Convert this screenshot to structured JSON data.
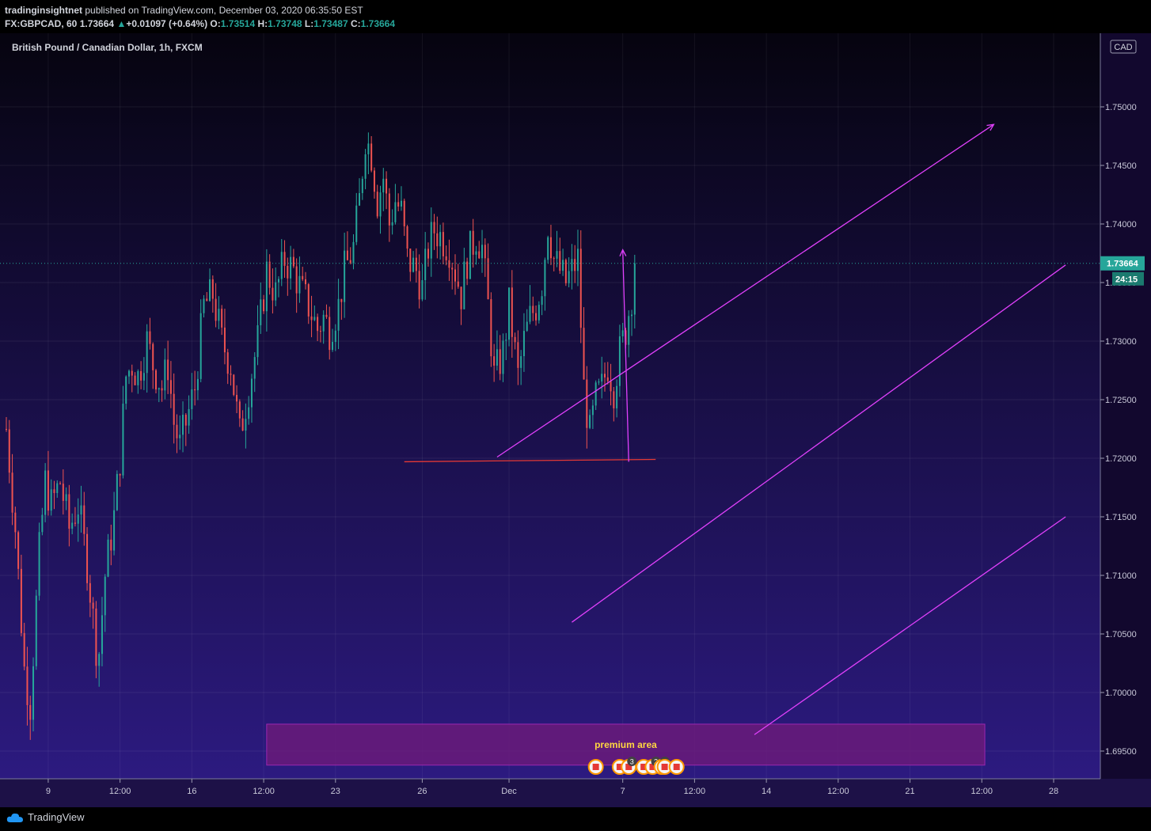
{
  "header": {
    "author": "tradinginsightnet",
    "published_text": "published on TradingView.com, December 03, 2020 06:35:50 EST",
    "symbol": "FX:GBPCAD, 60",
    "last": "1.73664",
    "change_arrow": "▲",
    "change": "+0.01097 (+0.64%)",
    "open_label": "O:",
    "open": "1.73514",
    "high_label": "H:",
    "high": "1.73748",
    "low_label": "L:",
    "low": "1.73487",
    "close_label": "C:",
    "close": "1.73664"
  },
  "chart_title": "British Pound / Canadian Dollar, 1h, FXCM",
  "currency_badge": "CAD",
  "colors": {
    "bg_top": "#06040f",
    "bg_bottom": "#2c1a80",
    "up": "#26a69a",
    "down": "#ef5350",
    "drawing": "#e040fb",
    "support": "#e53935",
    "premium_fill": "#6a1b7a",
    "premium_text": "#ffd740"
  },
  "chart_data": {
    "type": "candlestick",
    "title": "British Pound / Canadian Dollar, 1h, FXCM",
    "y_axis": {
      "ylim": [
        1.6925,
        1.7525
      ],
      "ticks": [
        "1.75000",
        "1.74500",
        "1.74000",
        "1.73500",
        "1.73000",
        "1.72500",
        "1.72000",
        "1.71500",
        "1.71000",
        "1.70500",
        "1.70000",
        "1.69500"
      ],
      "tick_values": [
        1.75,
        1.745,
        1.74,
        1.735,
        1.73,
        1.725,
        1.72,
        1.715,
        1.71,
        1.705,
        1.7,
        1.695
      ]
    },
    "x_axis": {
      "ticks": [
        "12:00",
        "9",
        "12:00",
        "16",
        "12:00",
        "23",
        "26",
        "Dec",
        "7",
        "12:00",
        "14",
        "12:00",
        "21",
        "12:00",
        "28"
      ],
      "tick_bars": [
        -10,
        14,
        38,
        62,
        86,
        110,
        139,
        168,
        206,
        230,
        254,
        278,
        302,
        326,
        350
      ]
    },
    "last_price": {
      "label": "1.73664",
      "value": 1.73664,
      "countdown": "24:15"
    },
    "price_path": [
      [
        0,
        1.7225
      ],
      [
        3,
        1.714
      ],
      [
        6,
        1.702
      ],
      [
        8,
        1.699
      ],
      [
        11,
        1.712
      ],
      [
        13,
        1.718
      ],
      [
        15,
        1.716
      ],
      [
        18,
        1.718
      ],
      [
        21,
        1.714
      ],
      [
        24,
        1.716
      ],
      [
        27,
        1.711
      ],
      [
        30,
        1.704
      ],
      [
        31,
        1.7035
      ],
      [
        33,
        1.71
      ],
      [
        36,
        1.715
      ],
      [
        38,
        1.72
      ],
      [
        40,
        1.727
      ],
      [
        42,
        1.728
      ],
      [
        44,
        1.727
      ],
      [
        47,
        1.73
      ],
      [
        49,
        1.728
      ],
      [
        52,
        1.726
      ],
      [
        54,
        1.728
      ],
      [
        56,
        1.723
      ],
      [
        58,
        1.721
      ],
      [
        61,
        1.724
      ],
      [
        63,
        1.726
      ],
      [
        66,
        1.733
      ],
      [
        69,
        1.734
      ],
      [
        72,
        1.73
      ],
      [
        75,
        1.728
      ],
      [
        78,
        1.722
      ],
      [
        81,
        1.726
      ],
      [
        84,
        1.73
      ],
      [
        87,
        1.736
      ],
      [
        90,
        1.734
      ],
      [
        93,
        1.737
      ],
      [
        96,
        1.736
      ],
      [
        99,
        1.734
      ],
      [
        101,
        1.733
      ],
      [
        104,
        1.731
      ],
      [
        106,
        1.732
      ],
      [
        108,
        1.731
      ],
      [
        111,
        1.733
      ],
      [
        113,
        1.736
      ],
      [
        116,
        1.738
      ],
      [
        118,
        1.742
      ],
      [
        120,
        1.7475
      ],
      [
        122,
        1.746
      ],
      [
        124,
        1.742
      ],
      [
        126,
        1.744
      ],
      [
        128,
        1.74
      ],
      [
        130,
        1.742
      ],
      [
        132,
        1.741
      ],
      [
        134,
        1.737
      ],
      [
        137,
        1.736
      ],
      [
        139,
        1.7345
      ],
      [
        141,
        1.738
      ],
      [
        143,
        1.7395
      ],
      [
        145,
        1.739
      ],
      [
        148,
        1.738
      ],
      [
        150,
        1.736
      ],
      [
        152,
        1.734
      ],
      [
        154,
        1.737
      ],
      [
        157,
        1.739
      ],
      [
        159,
        1.738
      ],
      [
        161,
        1.733
      ],
      [
        163,
        1.727
      ],
      [
        166,
        1.729
      ],
      [
        168,
        1.733
      ],
      [
        171,
        1.727
      ],
      [
        173,
        1.73
      ],
      [
        175,
        1.732
      ],
      [
        177,
        1.733
      ],
      [
        179,
        1.735
      ],
      [
        181,
        1.74
      ],
      [
        183,
        1.737
      ],
      [
        185,
        1.736
      ],
      [
        187,
        1.735
      ],
      [
        189,
        1.736
      ],
      [
        191,
        1.737
      ],
      [
        193,
        1.726
      ],
      [
        195,
        1.722
      ],
      [
        197,
        1.725
      ],
      [
        199,
        1.726
      ],
      [
        201,
        1.728
      ],
      [
        203,
        1.726
      ],
      [
        205,
        1.729
      ],
      [
        207,
        1.731
      ],
      [
        209,
        1.734
      ],
      [
        210,
        1.7366
      ]
    ],
    "drawings": {
      "support_line": {
        "x1": 133,
        "y1": 1.7197,
        "x2": 217,
        "y2": 1.7199
      },
      "trend_line_1": {
        "x1": 164,
        "y1": 1.7201,
        "x2": 330,
        "y2": 1.7485,
        "arrow": true
      },
      "trend_line_2": {
        "x1": 189,
        "y1": 1.706,
        "x2": 354,
        "y2": 1.7365
      },
      "trend_line_3": {
        "x1": 250,
        "y1": 1.6964,
        "x2": 354,
        "y2": 1.715
      },
      "vertical_arrow": {
        "x1": 208,
        "y1": 1.7197,
        "x2": 206,
        "y2": 1.7378
      },
      "premium_box": {
        "x1": 87,
        "y1": 1.6938,
        "x2": 327,
        "y2": 1.6973,
        "label": "premium area"
      }
    },
    "event_icons": [
      {
        "x": 197,
        "label": ""
      },
      {
        "x": 205,
        "label": ""
      },
      {
        "x": 208,
        "label": "3"
      },
      {
        "x": 213,
        "label": ""
      },
      {
        "x": 216,
        "label": "2"
      },
      {
        "x": 219,
        "label": "2"
      },
      {
        "x": 220,
        "label": ""
      },
      {
        "x": 224,
        "label": ""
      }
    ]
  },
  "footer": {
    "brand": "TradingView"
  }
}
